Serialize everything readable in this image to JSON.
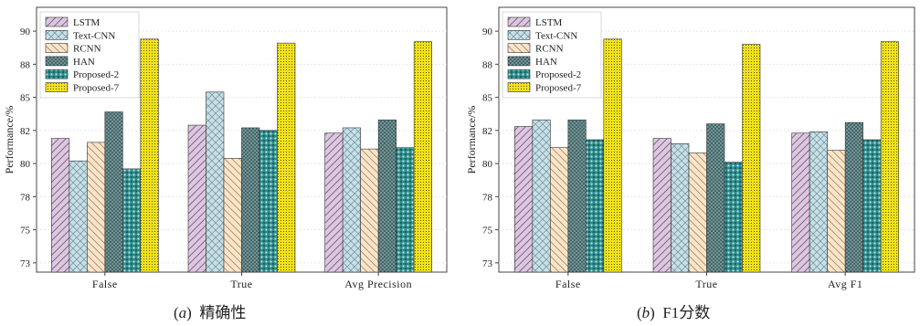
{
  "captions": [
    {
      "letter": "a",
      "text": "精确性"
    },
    {
      "letter": "b",
      "text": "F1分数"
    }
  ],
  "legend": [
    "LSTM",
    "Text-CNN",
    "RCNN",
    "HAN",
    "Proposed-2",
    "Proposed-7"
  ],
  "series_style": [
    {
      "fill": "#dcc6e0",
      "stroke": "#6e5a75",
      "pattern": "diag"
    },
    {
      "fill": "#c7dfe7",
      "stroke": "#6f8f99",
      "pattern": "cross"
    },
    {
      "fill": "#fbe3c6",
      "stroke": "#8d7a63",
      "pattern": "rdiag"
    },
    {
      "fill": "#6f9496",
      "stroke": "#2f4546",
      "pattern": "dense"
    },
    {
      "fill": "#2f8e8e",
      "stroke": "#0f3c3c",
      "pattern": "dots"
    },
    {
      "fill": "#f2e21c",
      "stroke": "#3a3505",
      "pattern": "fine"
    }
  ],
  "chart_data": [
    {
      "type": "bar",
      "ylabel": "Performance/%",
      "yticks": [
        "73",
        "75",
        "78",
        "80",
        "82",
        "85",
        "88",
        "90"
      ],
      "ytick_values": [
        72.5,
        75,
        77.5,
        80,
        82.5,
        85,
        87.5,
        90
      ],
      "ylim": [
        71.8,
        91.8
      ],
      "categories": [
        "False",
        "True",
        "Avg Precision"
      ],
      "series": [
        {
          "name": "LSTM",
          "values": [
            81.9,
            82.9,
            82.3
          ]
        },
        {
          "name": "Text-CNN",
          "values": [
            80.2,
            85.4,
            82.7
          ]
        },
        {
          "name": "RCNN",
          "values": [
            81.6,
            80.4,
            81.1
          ]
        },
        {
          "name": "HAN",
          "values": [
            83.9,
            82.7,
            83.3
          ]
        },
        {
          "name": "Proposed-2",
          "values": [
            79.6,
            82.5,
            81.2
          ]
        },
        {
          "name": "Proposed-7",
          "values": [
            89.4,
            89.1,
            89.2
          ]
        }
      ]
    },
    {
      "type": "bar",
      "ylabel": "Performance/%",
      "yticks": [
        "73",
        "75",
        "78",
        "80",
        "82",
        "85",
        "88",
        "90"
      ],
      "ytick_values": [
        72.5,
        75,
        77.5,
        80,
        82.5,
        85,
        87.5,
        90
      ],
      "ylim": [
        71.8,
        91.8
      ],
      "categories": [
        "False",
        "True",
        "Avg F1"
      ],
      "series": [
        {
          "name": "LSTM",
          "values": [
            82.8,
            81.9,
            82.3
          ]
        },
        {
          "name": "Text-CNN",
          "values": [
            83.3,
            81.5,
            82.4
          ]
        },
        {
          "name": "RCNN",
          "values": [
            81.2,
            80.8,
            81.0
          ]
        },
        {
          "name": "HAN",
          "values": [
            83.3,
            83.0,
            83.1
          ]
        },
        {
          "name": "Proposed-2",
          "values": [
            81.8,
            80.1,
            81.8
          ]
        },
        {
          "name": "Proposed-7",
          "values": [
            89.4,
            89.0,
            89.2
          ]
        }
      ]
    }
  ]
}
